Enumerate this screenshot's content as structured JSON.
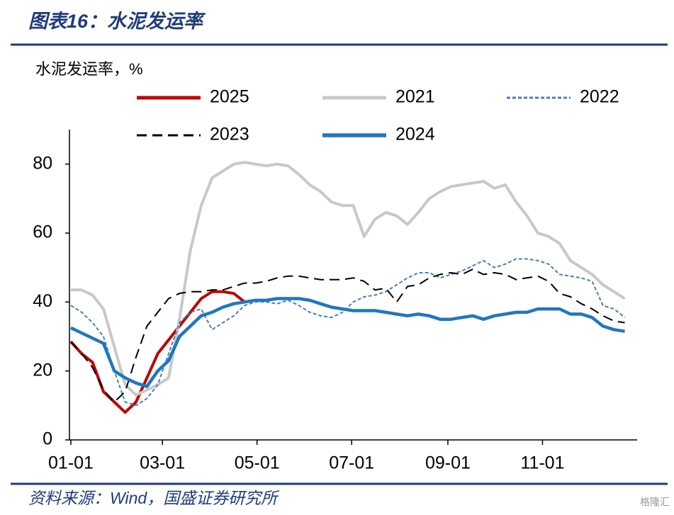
{
  "header": {
    "title": "图表16：水泥发运率"
  },
  "footer": {
    "source": "资料来源：Wind，国盛证券研究所",
    "watermark": "格隆汇"
  },
  "chart_data": {
    "type": "line",
    "y_label": "水泥发运率，%",
    "x": [
      0,
      7,
      14,
      21,
      28,
      35,
      42,
      49,
      56,
      63,
      70,
      77,
      84,
      91,
      98,
      105,
      112,
      119,
      126,
      133,
      140,
      147,
      154,
      161,
      168,
      175,
      182,
      189,
      196,
      203,
      210,
      217,
      224,
      231,
      238,
      245,
      252,
      259,
      266,
      273,
      280,
      287,
      294,
      301,
      308,
      315,
      322,
      329,
      336,
      343,
      350,
      357
    ],
    "xlim": [
      0,
      365
    ],
    "xticks": [
      {
        "value": 0,
        "label": "01-01"
      },
      {
        "value": 59,
        "label": "03-01"
      },
      {
        "value": 120,
        "label": "05-01"
      },
      {
        "value": 181,
        "label": "07-01"
      },
      {
        "value": 243,
        "label": "09-01"
      },
      {
        "value": 304,
        "label": "11-01"
      }
    ],
    "ylim": [
      0,
      90
    ],
    "yticks": [
      0,
      20,
      40,
      60,
      80
    ],
    "grid": false,
    "series": [
      {
        "name": "2025",
        "color": "#c00000",
        "dash": "solid",
        "linewidth": 4,
        "values": [
          28.5,
          25,
          22.5,
          14,
          11,
          8,
          11,
          18,
          25,
          29,
          33,
          37,
          41,
          43,
          43,
          42.5,
          40,
          null,
          null,
          null,
          null,
          null,
          null,
          null,
          null,
          null,
          null,
          null,
          null,
          null,
          null,
          null,
          null,
          null,
          null,
          null,
          null,
          null,
          null,
          null,
          null,
          null,
          null,
          null,
          null,
          null,
          null,
          null,
          null,
          null,
          null,
          null
        ]
      },
      {
        "name": "2021",
        "color": "#c8c8c8",
        "dash": "solid",
        "linewidth": 4,
        "values": [
          43.5,
          43.5,
          42,
          38,
          27,
          16,
          13,
          14.5,
          16,
          18,
          35,
          55,
          68,
          76,
          78,
          80,
          80.5,
          80,
          79.5,
          80,
          79.5,
          77,
          74,
          72,
          69,
          68,
          68,
          59,
          64,
          66,
          65,
          62.5,
          66,
          70,
          72,
          73.5,
          74,
          74.5,
          75,
          73,
          74,
          69,
          65,
          60,
          59,
          57,
          52,
          50,
          48,
          45,
          43,
          41
        ]
      },
      {
        "name": "2022",
        "color": "#4a7ebb",
        "dash": "dotted",
        "linewidth": 2,
        "values": [
          39,
          37,
          34,
          30,
          20,
          11,
          10,
          12,
          16,
          25,
          34,
          37,
          38,
          32,
          34,
          36,
          39,
          40,
          40,
          39.5,
          40.5,
          39,
          37,
          36,
          35.5,
          37,
          40,
          41.5,
          42,
          43,
          45,
          47,
          48.5,
          48.5,
          47,
          48,
          49,
          50.5,
          52,
          50,
          51,
          52.5,
          52.5,
          52,
          51,
          48,
          47.5,
          47,
          46,
          39,
          38,
          35.5
        ]
      },
      {
        "name": "2023",
        "color": "#000000",
        "dash": "dashed",
        "linewidth": 2,
        "values": [
          28.5,
          25,
          21,
          14.5,
          11,
          14,
          24,
          33,
          37,
          41,
          42.5,
          43,
          43,
          43.5,
          43.5,
          44.5,
          45.5,
          45.5,
          46,
          47,
          47.5,
          47.5,
          47,
          46.5,
          46.5,
          46.5,
          47,
          46,
          43.5,
          44,
          40,
          44.5,
          45,
          47,
          48,
          48.5,
          48,
          49.5,
          48,
          48.5,
          48,
          46.5,
          47,
          47.5,
          46,
          42.5,
          41.5,
          39.5,
          38,
          36,
          34.5,
          34
        ]
      },
      {
        "name": "2024",
        "color": "#1f77c0",
        "dash": "solid",
        "linewidth": 4.5,
        "values": [
          32.5,
          31,
          29.5,
          28,
          20,
          18,
          16.5,
          15.5,
          20,
          23,
          30,
          33,
          36,
          37,
          38.5,
          39.5,
          40,
          40.5,
          40.5,
          41,
          41,
          41,
          40.5,
          39.5,
          38.5,
          38,
          37.5,
          37.5,
          37.5,
          37,
          36.5,
          36,
          36.5,
          36,
          35,
          35,
          35.5,
          36,
          35,
          36,
          36.5,
          37,
          37,
          38,
          38,
          38,
          36.5,
          36.5,
          35.5,
          33,
          32,
          31.5
        ]
      }
    ]
  }
}
